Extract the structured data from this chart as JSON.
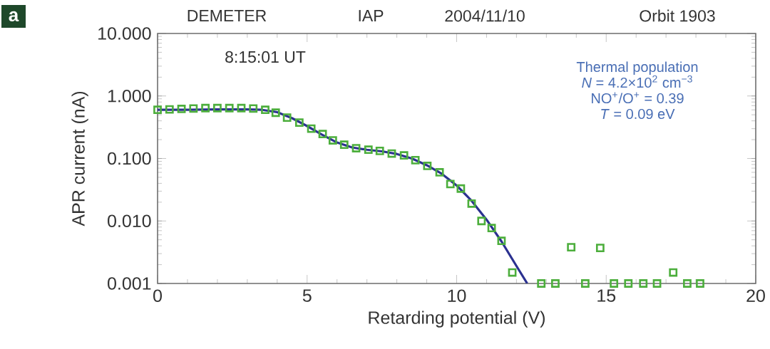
{
  "chart_data": {
    "type": "scatter",
    "xlabel": "Retarding potential (V)",
    "ylabel": "APR current (nA)",
    "annotations": [
      "a",
      "DEMETER",
      "IAP",
      "2004/11/10",
      "Orbit 1903",
      "8:15:01 UT",
      "Thermal population",
      "*N* = 4.2×10$^{2}$ cm$^{−3}$",
      "NO$^{+}$/O$^{+}$ = 0.39",
      "*T* = 0.09 eV"
    ],
    "series": [
      {
        "marker": "square",
        "color": "#4cae3c",
        "x": [
          0,
          0.4,
          0.8,
          1.2,
          1.6,
          2.0,
          2.4,
          2.8,
          3.2,
          3.6,
          3.95,
          4.33,
          4.74,
          5.14,
          5.52,
          5.86,
          6.24,
          6.64,
          7.05,
          7.43,
          7.83,
          8.24,
          8.62,
          9.02,
          9.43,
          9.79,
          10.14,
          10.5,
          10.83,
          11.17,
          11.5,
          11.86,
          12.83,
          13.3,
          13.83,
          14.3,
          14.8,
          15.26,
          15.74,
          16.24,
          16.7,
          17.24,
          17.71,
          18.14
        ],
        "values": [
          0.6,
          0.61,
          0.62,
          0.63,
          0.64,
          0.64,
          0.64,
          0.64,
          0.63,
          0.6,
          0.54,
          0.45,
          0.375,
          0.3,
          0.246,
          0.195,
          0.166,
          0.146,
          0.138,
          0.132,
          0.12,
          0.112,
          0.094,
          0.076,
          0.06,
          0.039,
          0.033,
          0.019,
          0.01,
          0.0077,
          0.0048,
          0.0015,
          0.001,
          0.001,
          0.0038,
          0.001,
          0.0037,
          0.001,
          0.001,
          0.001,
          0.001,
          0.0015,
          0.001,
          0.001
        ]
      },
      {
        "type": "line",
        "marker": "none",
        "color": "#2b3190",
        "x": [
          0,
          1,
          2,
          3,
          3.5,
          4,
          4.5,
          5,
          5.5,
          6,
          6.5,
          7,
          7.5,
          8,
          8.5,
          9,
          9.5,
          10,
          10.5,
          11,
          11.5,
          12,
          12.36
        ],
        "values": [
          0.6,
          0.6,
          0.61,
          0.61,
          0.6,
          0.55,
          0.44,
          0.33,
          0.24,
          0.18,
          0.15,
          0.138,
          0.13,
          0.118,
          0.1,
          0.078,
          0.057,
          0.037,
          0.021,
          0.0105,
          0.0047,
          0.0019,
          0.001
        ]
      }
    ],
    "log": "y",
    "xlim": [
      0,
      20
    ],
    "xticks": [
      0,
      5,
      10,
      15,
      20
    ],
    "ylim": [
      0.001,
      10
    ],
    "yticks": [
      {
        "value": 0.001,
        "label": "0.001"
      },
      {
        "value": 0.01,
        "label": "0.010"
      },
      {
        "value": 0.1,
        "label": "0.100"
      },
      {
        "value": 1,
        "label": "1.000"
      },
      {
        "value": 10,
        "label": "10.000"
      }
    ]
  }
}
